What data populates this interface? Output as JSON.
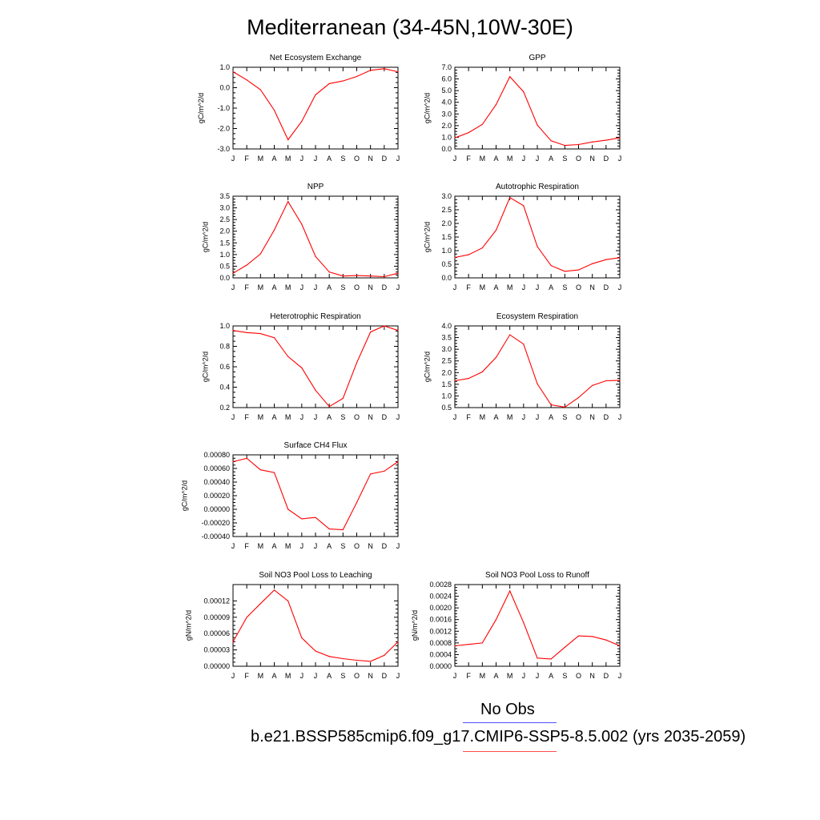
{
  "title": "Mediterranean (34-45N,10W-30E)",
  "months": [
    "J",
    "F",
    "M",
    "A",
    "M",
    "J",
    "J",
    "A",
    "S",
    "O",
    "N",
    "D",
    "J"
  ],
  "line_color": "#ff0000",
  "legend": {
    "obs": {
      "label": "No Obs",
      "color": "#4f4fff"
    },
    "model": {
      "label": "b.e21.BSSP585cmip6.f09_g17.CMIP6-SSP5-8.5.002 (yrs 2035-2059)",
      "color": "#ff4f4f"
    }
  },
  "chart_data": [
    {
      "type": "line",
      "title": "Net Ecosystem Exchange",
      "ylabel": "gC/m^2/d",
      "ylim": [
        -3.0,
        1.0
      ],
      "yticks": [
        "-3.0",
        "-2.0",
        "-1.0",
        "0.0",
        "1.0"
      ],
      "ytick_values": [
        -3,
        -2,
        -1,
        0,
        1
      ],
      "values": [
        0.78,
        0.38,
        -0.1,
        -1.1,
        -2.55,
        -1.65,
        -0.35,
        0.2,
        0.33,
        0.55,
        0.85,
        0.93,
        0.78
      ]
    },
    {
      "type": "line",
      "title": "GPP",
      "ylabel": "gC/m^2/d",
      "ylim": [
        0.0,
        7.0
      ],
      "yticks": [
        "0.0",
        "1.0",
        "2.0",
        "3.0",
        "4.0",
        "5.0",
        "6.0",
        "7.0"
      ],
      "ytick_values": [
        0,
        1,
        2,
        3,
        4,
        5,
        6,
        7
      ],
      "values": [
        0.95,
        1.4,
        2.1,
        3.8,
        6.2,
        4.9,
        2.05,
        0.7,
        0.3,
        0.38,
        0.6,
        0.75,
        0.95
      ]
    },
    {
      "type": "line",
      "title": "NPP",
      "ylabel": "gC/m^2/d",
      "ylim": [
        0.0,
        3.5
      ],
      "yticks": [
        "0.0",
        "0.5",
        "1.0",
        "1.5",
        "2.0",
        "2.5",
        "3.0",
        "3.5"
      ],
      "ytick_values": [
        0,
        0.5,
        1,
        1.5,
        2,
        2.5,
        3,
        3.5
      ],
      "values": [
        0.2,
        0.55,
        1.03,
        2.05,
        3.27,
        2.3,
        0.92,
        0.25,
        0.08,
        0.1,
        0.08,
        0.05,
        0.2
      ]
    },
    {
      "type": "line",
      "title": "Autotrophic Respiration",
      "ylabel": "gC/m^2/d",
      "ylim": [
        0.0,
        3.0
      ],
      "yticks": [
        "0.0",
        "0.5",
        "1.0",
        "1.5",
        "2.0",
        "2.5",
        "3.0"
      ],
      "ytick_values": [
        0,
        0.5,
        1,
        1.5,
        2,
        2.5,
        3
      ],
      "values": [
        0.75,
        0.85,
        1.1,
        1.75,
        2.95,
        2.65,
        1.15,
        0.45,
        0.24,
        0.29,
        0.52,
        0.67,
        0.74
      ]
    },
    {
      "type": "line",
      "title": "Heterotrophic Respiration",
      "ylabel": "gC/m^2/d",
      "ylim": [
        0.2,
        1.0
      ],
      "yticks": [
        "0.2",
        "0.4",
        "0.6",
        "0.8",
        "1.0"
      ],
      "ytick_values": [
        0.2,
        0.4,
        0.6,
        0.8,
        1.0
      ],
      "values": [
        0.955,
        0.935,
        0.925,
        0.885,
        0.7,
        0.59,
        0.37,
        0.21,
        0.29,
        0.64,
        0.94,
        1.0,
        0.955
      ]
    },
    {
      "type": "line",
      "title": "Ecosystem Respiration",
      "ylabel": "gC/m^2/d",
      "ylim": [
        0.5,
        4.0
      ],
      "yticks": [
        "0.5",
        "1.0",
        "1.5",
        "2.0",
        "2.5",
        "3.0",
        "3.5",
        "4.0"
      ],
      "ytick_values": [
        0.5,
        1,
        1.5,
        2,
        2.5,
        3,
        3.5,
        4
      ],
      "values": [
        1.65,
        1.75,
        2.03,
        2.65,
        3.62,
        3.22,
        1.52,
        0.62,
        0.52,
        0.93,
        1.45,
        1.65,
        1.67
      ]
    },
    {
      "type": "line",
      "title": "Surface CH4 Flux",
      "ylabel": "gC/m^2/d",
      "ylim": [
        -0.0004,
        0.0008
      ],
      "yticks": [
        "-0.00040",
        "-0.00020",
        "0.00000",
        "0.00020",
        "0.00040",
        "0.00060",
        "0.00080"
      ],
      "ytick_values": [
        -0.0004,
        -0.0002,
        0,
        0.0002,
        0.0004,
        0.0006,
        0.0008
      ],
      "values": [
        0.0007,
        0.00075,
        0.00058,
        0.00054,
        0.0,
        -0.00014,
        -0.00012,
        -0.00029,
        -0.0003,
        0.0001,
        0.00052,
        0.00056,
        0.0007
      ]
    },
    null,
    {
      "type": "line",
      "title": "Soil NO3 Pool Loss to Leaching",
      "ylabel": "gN/m^2/d",
      "ylim": [
        0.0,
        0.00015
      ],
      "yticks": [
        "0.00000",
        "0.00003",
        "0.00006",
        "0.00009",
        "0.00012"
      ],
      "ytick_values": [
        0,
        3e-05,
        6e-05,
        9e-05,
        0.00012
      ],
      "values": [
        4.5e-05,
        9e-05,
        0.000115,
        0.00014,
        0.00012,
        5.2e-05,
        2.8e-05,
        1.8e-05,
        1.4e-05,
        1.1e-05,
        9e-06,
        2e-05,
        4.5e-05
      ]
    },
    {
      "type": "line",
      "title": "Soil NO3 Pool Loss to Runoff",
      "ylabel": "gN/m^2/d",
      "ylim": [
        0.0,
        0.0028
      ],
      "yticks": [
        "0.0000",
        "0.0004",
        "0.0008",
        "0.0012",
        "0.0016",
        "0.0020",
        "0.0024",
        "0.0028"
      ],
      "ytick_values": [
        0,
        0.0004,
        0.0008,
        0.0012,
        0.0016,
        0.002,
        0.0024,
        0.0028
      ],
      "values": [
        0.0007,
        0.00075,
        0.0008,
        0.0016,
        0.00258,
        0.0015,
        0.00028,
        0.00025,
        0.00065,
        0.00104,
        0.00102,
        0.0009,
        0.0007
      ]
    }
  ]
}
